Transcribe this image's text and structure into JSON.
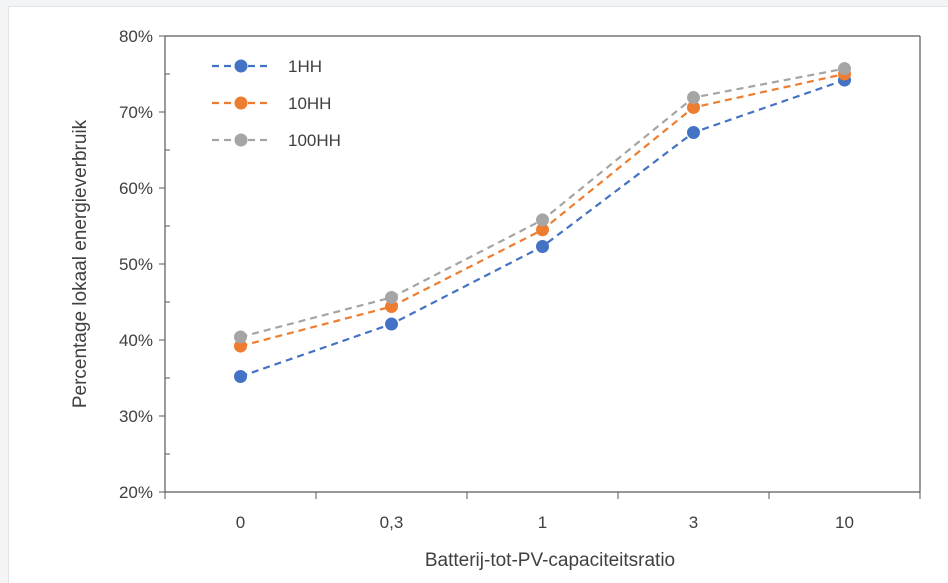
{
  "chart_data": {
    "type": "line",
    "categories": [
      "0",
      "0,3",
      "1",
      "3",
      "10"
    ],
    "series": [
      {
        "name": "1HH",
        "color": "#4472c4",
        "values": [
          35.2,
          42.1,
          52.3,
          67.3,
          74.2
        ]
      },
      {
        "name": "10HH",
        "color": "#ed7d31",
        "values": [
          39.2,
          44.4,
          54.5,
          70.6,
          75.0
        ]
      },
      {
        "name": "100HH",
        "color": "#a5a5a5",
        "values": [
          40.4,
          45.6,
          55.8,
          71.9,
          75.7
        ]
      }
    ],
    "xlabel": "Batterij-tot-PV-capaciteitsratio",
    "ylabel": "Percentage lokaal energieverbruik",
    "ylim": [
      20,
      80
    ],
    "yticks": [
      "20%",
      "30%",
      "40%",
      "50%",
      "60%",
      "70%",
      "80%"
    ],
    "grid": false,
    "legend_position": "top-left",
    "line_style": "dashed"
  }
}
